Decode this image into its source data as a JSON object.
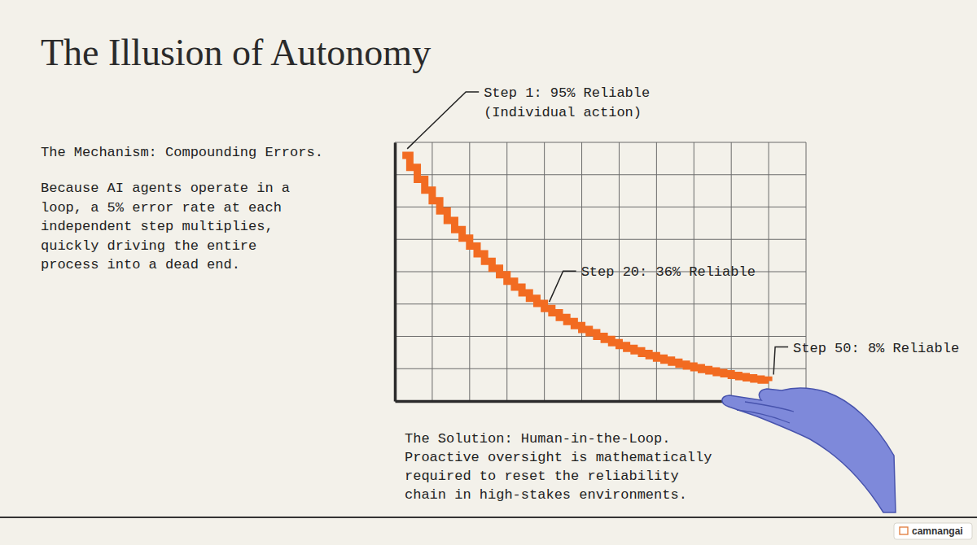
{
  "chart_data": {
    "type": "line",
    "title": "The Illusion of Autonomy",
    "mechanism": {
      "heading": "The Mechanism: Compounding Errors.",
      "lines": [
        "Because AI agents operate in a",
        "loop, a 5% error rate at each",
        "independent step multiplies,",
        "quickly driving the entire",
        "process into a dead end."
      ]
    },
    "solution": {
      "lines": [
        "The Solution: Human-in-the-Loop.",
        "Proactive oversight is mathematically",
        "required to reset the reliability",
        "chain in high-stakes environments."
      ]
    },
    "brand": "camnangai",
    "annotations": [
      {
        "lines": [
          "Step 1: 95% Reliable",
          "(Individual action)"
        ],
        "x": 1,
        "y": 95
      },
      {
        "lines": [
          "Step 20: 36% Reliable"
        ],
        "x": 20,
        "y": 35.8
      },
      {
        "lines": [
          "Step 50: 8% Reliable"
        ],
        "x": 50,
        "y": 7.7
      }
    ],
    "x": [
      1,
      2,
      3,
      4,
      5,
      6,
      7,
      8,
      9,
      10,
      11,
      12,
      13,
      14,
      15,
      16,
      17,
      18,
      19,
      20,
      21,
      22,
      23,
      24,
      25,
      26,
      27,
      28,
      29,
      30,
      31,
      32,
      33,
      34,
      35,
      36,
      37,
      38,
      39,
      40,
      41,
      42,
      43,
      44,
      45,
      46,
      47,
      48,
      49,
      50
    ],
    "values": [
      95,
      90.3,
      85.7,
      81.5,
      77.4,
      73.5,
      69.8,
      66.3,
      63,
      59.9,
      56.9,
      54,
      51.3,
      48.8,
      46.3,
      44,
      41.8,
      39.7,
      37.7,
      35.8,
      34.1,
      32.3,
      30.7,
      29.2,
      27.7,
      26.4,
      25,
      23.8,
      22.6,
      21.5,
      20.4,
      19.4,
      18.4,
      17.5,
      16.6,
      15.8,
      15,
      14.2,
      13.5,
      12.9,
      12.2,
      11.6,
      11,
      10.5,
      9.9,
      9.4,
      9,
      8.5,
      8.1,
      7.7
    ],
    "color": "#f26b21",
    "line_style": "step",
    "xlim": [
      0,
      55
    ],
    "xticks": [
      0,
      5,
      10,
      15,
      20,
      25,
      30,
      35,
      40,
      45,
      50,
      55
    ],
    "ylim": [
      0,
      100
    ],
    "yticks": [
      0,
      12.5,
      25,
      37.5,
      50,
      62.5,
      75,
      87.5,
      100
    ],
    "grid": true,
    "tick_labels": false
  }
}
